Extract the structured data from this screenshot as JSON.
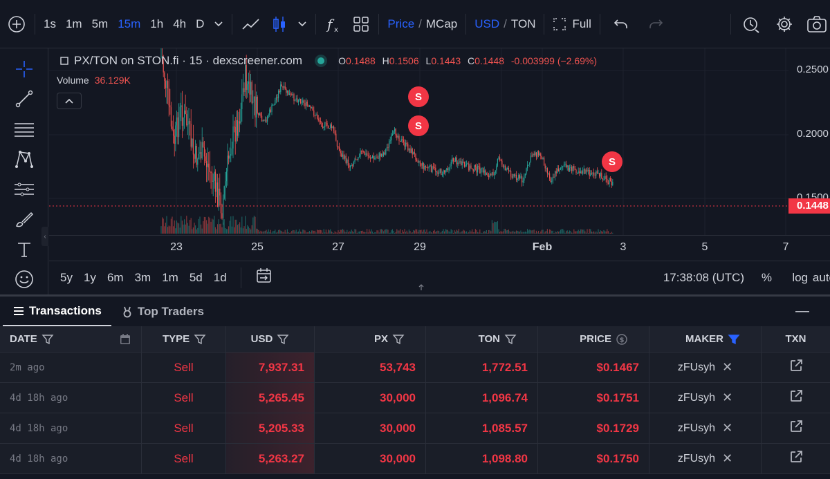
{
  "toolbar": {
    "intervals": [
      "1s",
      "1m",
      "5m",
      "15m",
      "1h",
      "4h",
      "D"
    ],
    "active_interval": "15m",
    "price_label": "Price",
    "mcap_label": "MCap",
    "usd_label": "USD",
    "ton_label": "TON",
    "full_label": "Full"
  },
  "chart": {
    "pair": "PX/TON on STON.fi · 15 · dexscreener.com",
    "ohlc": {
      "o_label": "O",
      "o": "0.1488",
      "h_label": "H",
      "h": "0.1506",
      "l_label": "L",
      "l": "0.1443",
      "c_label": "C",
      "c": "0.1448",
      "change": "-0.003999 (−2.69%)"
    },
    "volume_label": "Volume",
    "volume_value": "36.129K",
    "price_axis": [
      "0.2500",
      "0.2000",
      "0.1500"
    ],
    "last_price": "0.1448",
    "time_axis": [
      "23",
      "25",
      "27",
      "29",
      "Feb",
      "3",
      "5",
      "7"
    ],
    "sell_marker": "S",
    "colors": {
      "up": "#26a69a",
      "down": "#ef5350",
      "accent": "#2962ff",
      "sell": "#f23645"
    }
  },
  "range_bar": {
    "ranges": [
      "5y",
      "1y",
      "6m",
      "3m",
      "1m",
      "5d",
      "1d"
    ],
    "clock": "17:38:08 (UTC)",
    "percent": "%",
    "log": "log",
    "auto": "auto"
  },
  "tabs": {
    "transactions": "Transactions",
    "top_traders": "Top Traders"
  },
  "table": {
    "headers": {
      "date": "DATE",
      "type": "TYPE",
      "usd": "USD",
      "px": "PX",
      "ton": "TON",
      "price": "PRICE",
      "maker": "MAKER",
      "txn": "TXN"
    },
    "rows": [
      {
        "date": "2m ago",
        "type": "Sell",
        "usd": "7,937.31",
        "px": "53,743",
        "ton": "1,772.51",
        "price": "$0.1467",
        "maker": "zFUsyh"
      },
      {
        "date": "4d 18h ago",
        "type": "Sell",
        "usd": "5,265.45",
        "px": "30,000",
        "ton": "1,096.74",
        "price": "$0.1751",
        "maker": "zFUsyh"
      },
      {
        "date": "4d 18h ago",
        "type": "Sell",
        "usd": "5,205.33",
        "px": "30,000",
        "ton": "1,085.57",
        "price": "$0.1729",
        "maker": "zFUsyh"
      },
      {
        "date": "4d 18h ago",
        "type": "Sell",
        "usd": "5,263.27",
        "px": "30,000",
        "ton": "1,098.80",
        "price": "$0.1750",
        "maker": "zFUsyh"
      }
    ]
  }
}
